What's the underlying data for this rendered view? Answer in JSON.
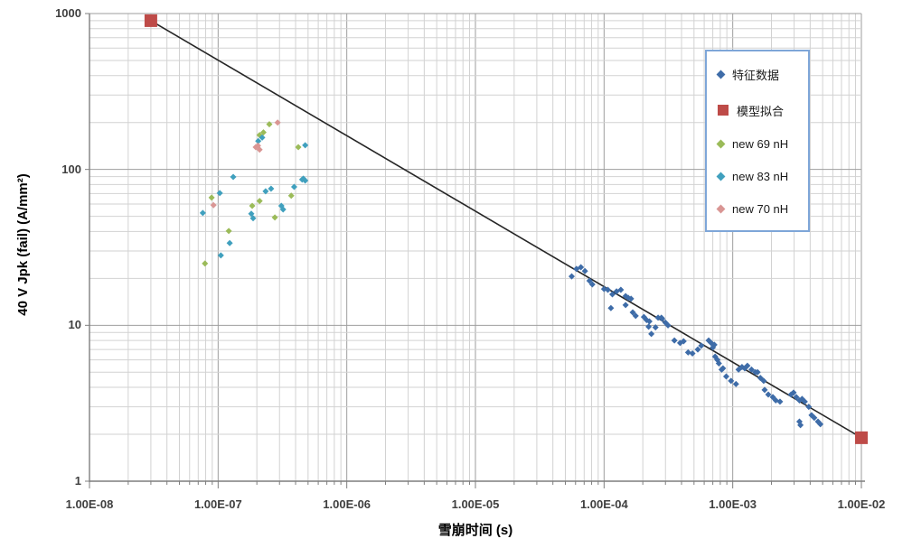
{
  "chart_data": {
    "type": "scatter",
    "title": "",
    "xlabel": "雪崩时间  (s)",
    "ylabel": "40 V Jpk (fail)  (A/mm²)",
    "x_scale": "log",
    "y_scale": "log",
    "x_range": [
      1e-08,
      0.01
    ],
    "y_range": [
      1,
      1000
    ],
    "x_tick_labels": [
      "1.00E-08",
      "1.00E-07",
      "1.00E-06",
      "1.00E-05",
      "1.00E-04",
      "1.00E-03",
      "1.00E-02"
    ],
    "y_tick_labels": [
      "1000",
      "100",
      "10",
      "1"
    ],
    "grid": "log major and minor, gray",
    "legend_position": "upper-right-inside",
    "colors": {
      "grid_minor": "#d2d2d2",
      "grid_major": "#9e9e9e",
      "axis": "#7f7f7f",
      "fit_line": "#262626",
      "legend_border": "#7ea6d8",
      "tick_text": "#3f3f3f"
    },
    "series": [
      {
        "name": "特征数据",
        "marker": "diamond",
        "color": "#3e6ca8",
        "size": 7,
        "points": [
          [
            5.6e-05,
            20.6
          ],
          [
            6.1e-05,
            23.0
          ],
          [
            6.6e-05,
            23.6
          ],
          [
            7.1e-05,
            22.3
          ],
          [
            7.7e-05,
            19.3
          ],
          [
            8.1e-05,
            18.3
          ],
          [
            0.0001,
            17.1
          ],
          [
            0.000107,
            16.9
          ],
          [
            0.000113,
            12.9
          ],
          [
            0.000116,
            15.8
          ],
          [
            0.000125,
            16.5
          ],
          [
            0.000135,
            16.9
          ],
          [
            0.000147,
            15.4
          ],
          [
            0.000147,
            13.5
          ],
          [
            0.000154,
            15.0
          ],
          [
            0.000162,
            14.8
          ],
          [
            0.000167,
            12.1
          ],
          [
            0.000176,
            11.5
          ],
          [
            0.000204,
            11.3
          ],
          [
            0.000214,
            10.8
          ],
          [
            0.000225,
            10.6
          ],
          [
            0.000222,
            9.8
          ],
          [
            0.000233,
            8.8
          ],
          [
            0.000251,
            9.7
          ],
          [
            0.000263,
            11.2
          ],
          [
            0.000279,
            11.2
          ],
          [
            0.000283,
            11.0
          ],
          [
            0.0003,
            10.4
          ],
          [
            0.000314,
            10.0
          ],
          [
            0.000352,
            8.0
          ],
          [
            0.00039,
            7.7
          ],
          [
            0.000415,
            7.9
          ],
          [
            0.00045,
            6.7
          ],
          [
            0.000486,
            6.6
          ],
          [
            0.000535,
            7.0
          ],
          [
            0.00057,
            7.4
          ],
          [
            0.00065,
            8.0
          ],
          [
            0.00068,
            7.7
          ],
          [
            0.0007,
            7.2
          ],
          [
            0.00072,
            7.5
          ],
          [
            0.00073,
            6.3
          ],
          [
            0.00076,
            6.0
          ],
          [
            0.00078,
            5.7
          ],
          [
            0.00082,
            5.2
          ],
          [
            0.00084,
            5.3
          ],
          [
            0.00089,
            4.7
          ],
          [
            0.00097,
            4.4
          ],
          [
            0.00106,
            4.2
          ],
          [
            0.00111,
            5.2
          ],
          [
            0.00118,
            5.4
          ],
          [
            0.00124,
            5.3
          ],
          [
            0.0013,
            5.5
          ],
          [
            0.0014,
            5.2
          ],
          [
            0.0015,
            5.0
          ],
          [
            0.00156,
            5.0
          ],
          [
            0.00164,
            4.6
          ],
          [
            0.00174,
            4.4
          ],
          [
            0.00177,
            3.85
          ],
          [
            0.00189,
            3.6
          ],
          [
            0.00205,
            3.46
          ],
          [
            0.00216,
            3.3
          ],
          [
            0.00233,
            3.24
          ],
          [
            0.00284,
            3.6
          ],
          [
            0.00297,
            3.7
          ],
          [
            0.00312,
            3.46
          ],
          [
            0.0033,
            3.3
          ],
          [
            0.0033,
            2.41
          ],
          [
            0.00336,
            2.29
          ],
          [
            0.00346,
            3.37
          ],
          [
            0.00363,
            3.24
          ],
          [
            0.0039,
            3.0
          ],
          [
            0.0041,
            2.65
          ],
          [
            0.0043,
            2.55
          ],
          [
            0.0046,
            2.41
          ],
          [
            0.0048,
            2.32
          ]
        ]
      },
      {
        "name": "模型拟合",
        "marker": "square",
        "color": "#be4b48",
        "size": 14,
        "line": {
          "color": "#262626",
          "width": 1.6
        },
        "points": [
          [
            3e-08,
            900
          ],
          [
            0.01,
            1.9
          ]
        ]
      },
      {
        "name": "new 69 nH",
        "marker": "diamond",
        "color": "#9bbb59",
        "size": 7,
        "points": [
          [
            2.5e-07,
            195
          ],
          [
            2.1e-07,
            166
          ],
          [
            2.25e-07,
            173
          ],
          [
            4.2e-07,
            139
          ],
          [
            3.7e-07,
            67.8
          ],
          [
            2.1e-07,
            62.7
          ],
          [
            1.84e-07,
            58.4
          ],
          [
            2.76e-07,
            49.2
          ],
          [
            8.9e-08,
            66
          ],
          [
            1.21e-07,
            40.3
          ],
          [
            7.9e-08,
            24.9
          ]
        ]
      },
      {
        "name": "new 83 nH",
        "marker": "diamond",
        "color": "#40a0be",
        "size": 7,
        "points": [
          [
            2.05e-07,
            152
          ],
          [
            2.2e-07,
            160
          ],
          [
            4.75e-07,
            143
          ],
          [
            1.31e-07,
            89.5
          ],
          [
            4.6e-07,
            87.2
          ],
          [
            4.75e-07,
            84.9
          ],
          [
            1.03e-07,
            70.5
          ],
          [
            7.6e-08,
            52.6
          ],
          [
            2.34e-07,
            72.4
          ],
          [
            2.58e-07,
            75.3
          ],
          [
            1.81e-07,
            52.0
          ],
          [
            1.87e-07,
            48.6
          ],
          [
            3.9e-07,
            77.3
          ],
          [
            4.5e-07,
            86.1
          ],
          [
            3.1e-07,
            58.4
          ],
          [
            3.2e-07,
            55.4
          ],
          [
            1.23e-07,
            33.7
          ],
          [
            1.05e-07,
            28.1
          ]
        ]
      },
      {
        "name": "new 70 nH",
        "marker": "diamond",
        "color": "#d99694",
        "size": 7,
        "points": [
          [
            2.9e-07,
            200
          ],
          [
            1.96e-07,
            139
          ],
          [
            2.04e-07,
            142
          ],
          [
            2.1e-07,
            134
          ],
          [
            9.2e-08,
            59
          ]
        ]
      }
    ]
  }
}
